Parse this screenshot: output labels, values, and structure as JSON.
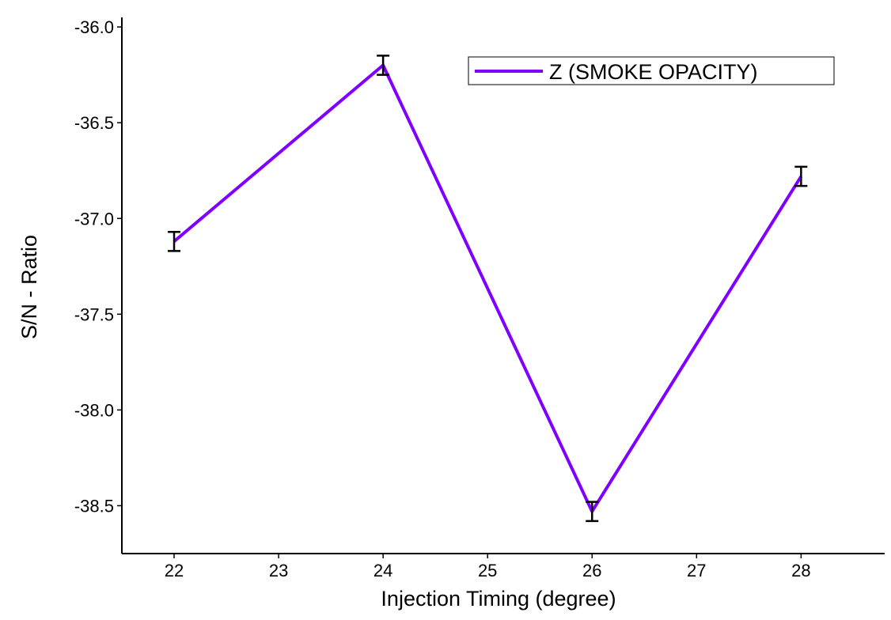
{
  "chart_data": {
    "type": "line",
    "title": "",
    "xlabel": "Injection Timing (degree)",
    "ylabel": "S/N - Ratio",
    "xlim": [
      21.5,
      28.8
    ],
    "ylim": [
      -38.75,
      -35.95
    ],
    "x_ticks": [
      22,
      23,
      24,
      25,
      26,
      27,
      28
    ],
    "x_tick_labels": [
      "22",
      "23",
      "24",
      "25",
      "26",
      "27",
      "28"
    ],
    "y_ticks": [
      -36.0,
      -36.5,
      -37.0,
      -37.5,
      -38.0,
      -38.5
    ],
    "y_tick_labels": [
      "-36.0",
      "-36.5",
      "-37.0",
      "-37.5",
      "-38.0",
      "-38.5"
    ],
    "grid": false,
    "legend_position": "top-right",
    "series": [
      {
        "name": "Z (SMOKE OPACITY)",
        "color": "#7f00ff",
        "x": [
          22,
          24,
          26,
          28
        ],
        "values": [
          -37.12,
          -36.2,
          -38.53,
          -36.78
        ],
        "error": [
          0.05,
          0.05,
          0.05,
          0.05
        ]
      }
    ]
  }
}
